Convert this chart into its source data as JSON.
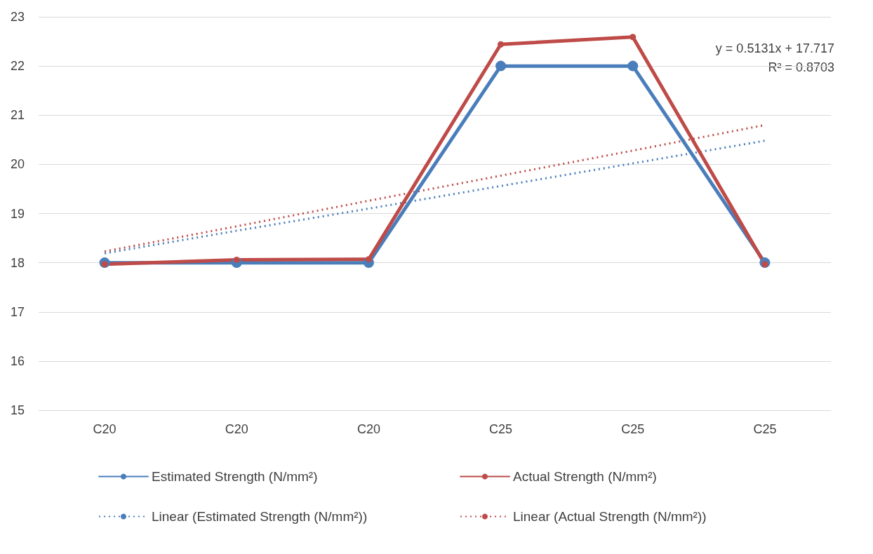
{
  "chart_data": {
    "type": "line",
    "categories": [
      "C20",
      "C20",
      "C20",
      "C25",
      "C25",
      "C25"
    ],
    "series": [
      {
        "name": "Estimated Strength (N/mm²)",
        "color": "#4a7ebb",
        "values": [
          18,
          18,
          18,
          22,
          22,
          18
        ],
        "marker": "circle",
        "line_style": "solid"
      },
      {
        "name": "Actual Strength (N/mm²)",
        "color": "#be4b48",
        "values": [
          17.97,
          18.06,
          18.07,
          22.44,
          22.59,
          17.97
        ],
        "marker": "circle",
        "line_style": "solid"
      },
      {
        "name": "Linear (Estimated Strength (N/mm²))",
        "color": "#4a7ebb",
        "values": [
          18.19,
          18.65,
          19.1,
          19.56,
          20.02,
          20.48
        ],
        "marker": "none",
        "line_style": "dotted"
      },
      {
        "name": "Linear (Actual Strength (N/mm²))",
        "color": "#be4b48",
        "values": [
          18.23,
          18.74,
          19.26,
          19.77,
          20.28,
          20.8
        ],
        "marker": "none",
        "line_style": "dotted"
      }
    ],
    "ylim": [
      15,
      23
    ],
    "yticks": [
      15,
      16,
      17,
      18,
      19,
      20,
      21,
      22,
      23
    ],
    "grid": "y",
    "legend": "bottom",
    "annotations": [
      "y = 0.5131x + 17.717",
      "R² = 0.8703"
    ]
  }
}
